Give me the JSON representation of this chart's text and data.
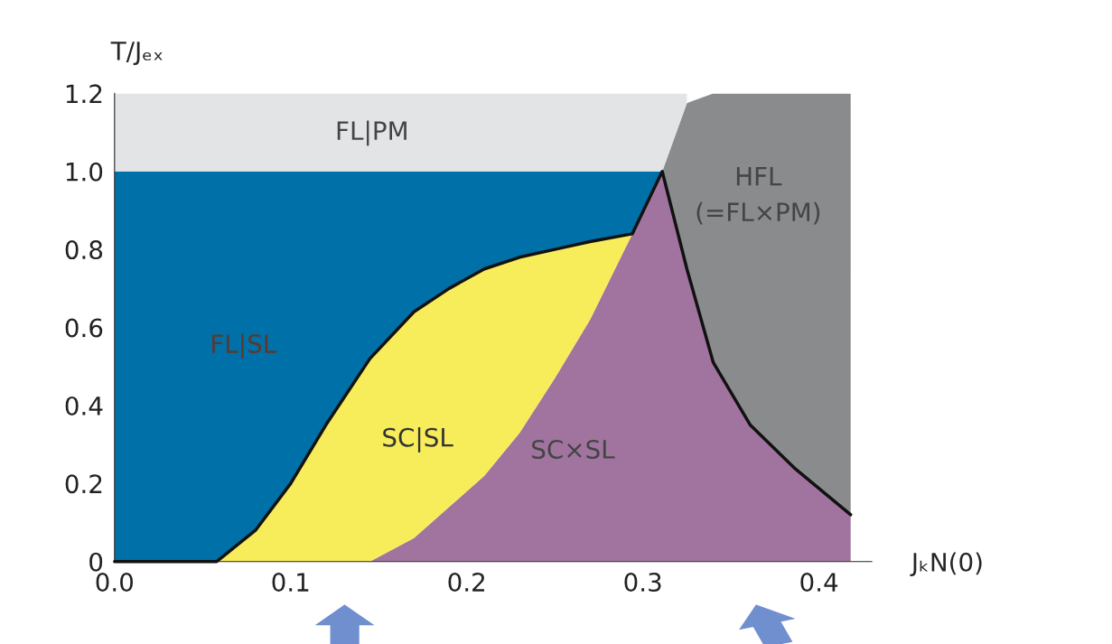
{
  "chart_data": {
    "type": "area",
    "stacked": true,
    "xlabel": "JₖN(0)",
    "ylabel": "T/Jₑₓ",
    "xlim": [
      0,
      0.43
    ],
    "ylim": [
      0,
      1.2
    ],
    "xticks": [
      {
        "value": 0,
        "label": "0.0"
      },
      0.1,
      0.2,
      0.3,
      0.4
    ],
    "yticks": [
      0,
      0.2,
      0.4,
      0.6,
      0.8,
      {
        "value": 1,
        "label": "1.0"
      },
      1.2
    ],
    "grid": false,
    "legend": false,
    "x": [
      0,
      0.058,
      0.08,
      0.1,
      0.12,
      0.145,
      0.17,
      0.19,
      0.21,
      0.23,
      0.25,
      0.27,
      0.294,
      0.311,
      0.325,
      0.34,
      0.361,
      0.386,
      0.418
    ],
    "series": [
      {
        "color": "#a0749e",
        "values": [
          null,
          null,
          null,
          null,
          null,
          0,
          0.06,
          0.14,
          0.22,
          0.33,
          0.47,
          0.62,
          0.84,
          1.0,
          0.75,
          0.51,
          0.35,
          0.24,
          0.12
        ]
      },
      {
        "color": "#f7ec5a",
        "values": [
          null,
          0,
          0.08,
          0.2,
          0.35,
          0.52,
          0.58,
          0.56,
          0.53,
          0.45,
          0.33,
          0.2,
          0,
          null,
          null,
          null,
          null,
          null,
          null
        ]
      },
      {
        "color": "#0070a8",
        "values": [
          1.0,
          1.0,
          0.92,
          0.8,
          0.65,
          0.48,
          0.36,
          0.3,
          0.25,
          0.22,
          0.2,
          0.18,
          0.16,
          0,
          null,
          null,
          null,
          null,
          null
        ]
      },
      {
        "color": "#8a8b8c",
        "values": [
          null,
          null,
          null,
          null,
          null,
          null,
          null,
          null,
          null,
          null,
          null,
          null,
          null,
          0,
          0.425,
          0.69,
          0.85,
          0.96,
          1.08
        ]
      },
      {
        "color": "#e3e4e6",
        "values": [
          0.2,
          0.2,
          0.2,
          0.2,
          0.2,
          0.2,
          0.2,
          0.2,
          0.2,
          0.2,
          0.2,
          0.2,
          0.2,
          0.2,
          0.025,
          null,
          null,
          null,
          null
        ]
      },
      {
        "type": "line",
        "color": "#111111",
        "values": [
          0,
          0,
          0.08,
          0.2,
          0.35,
          0.52,
          0.64,
          0.7,
          0.75,
          0.78,
          0.8,
          0.82,
          0.84,
          1.0,
          0.75,
          0.51,
          0.35,
          0.24,
          0.12
        ]
      }
    ],
    "annotations": [
      "FL|PM",
      "FL|SL",
      "SC|SL",
      "SC×SL",
      "HFL\n(=FL×PM)"
    ]
  }
}
